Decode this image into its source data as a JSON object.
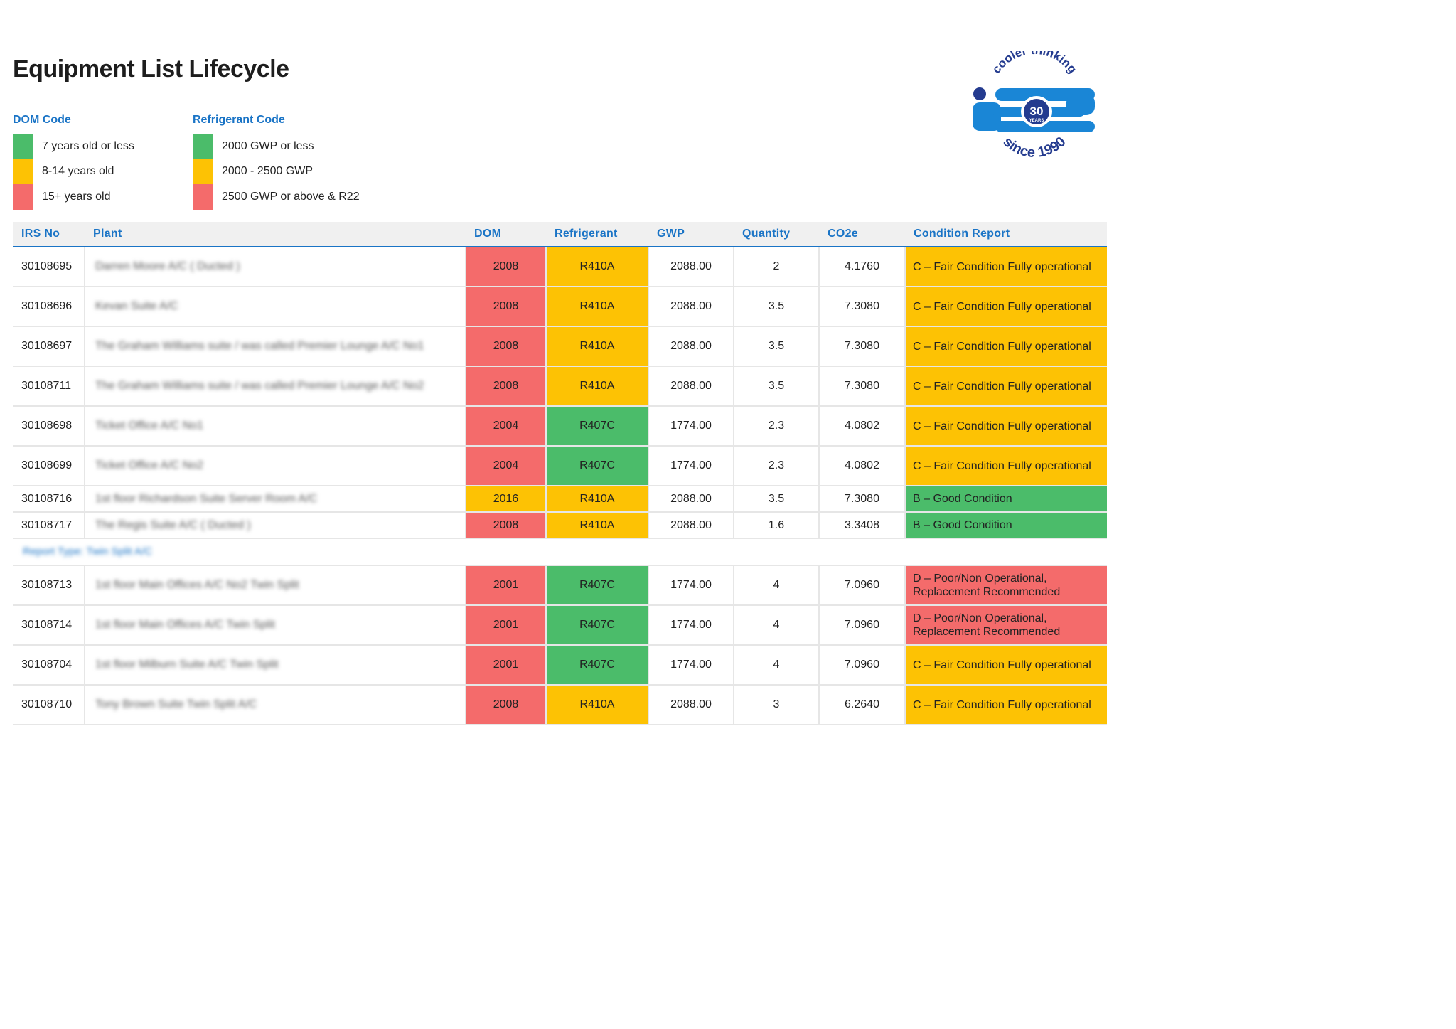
{
  "title": "Equipment List Lifecycle",
  "legend": {
    "dom": {
      "heading": "DOM Code",
      "items": [
        {
          "label": "7 years old or less",
          "color": "#4bbc6a"
        },
        {
          "label": "8-14 years old",
          "color": "#fdc204"
        },
        {
          "label": "15+ years old",
          "color": "#f46b6b"
        }
      ]
    },
    "refrigerant": {
      "heading": "Refrigerant Code",
      "items": [
        {
          "label": "2000 GWP or less",
          "color": "#4bbc6a"
        },
        {
          "label": "2000 - 2500 GWP",
          "color": "#fdc204"
        },
        {
          "label": "2500 GWP or above & R22",
          "color": "#f46b6b"
        }
      ]
    }
  },
  "logo": {
    "top_text": "cooler thinking",
    "badge_number": "30",
    "badge_word": "YEARS",
    "bottom_text": "since 1990"
  },
  "table": {
    "headers": [
      "IRS No",
      "Plant",
      "DOM",
      "Refrigerant",
      "GWP",
      "Quantity",
      "CO2e",
      "Condition Report"
    ],
    "rows": [
      {
        "irs": "30108695",
        "plant": "Darren Moore A/C ( Ducted )",
        "dom": "2008",
        "refrigerant": "R410A",
        "gwp": "2088.00",
        "quantity": "2",
        "co2e": "4.1760",
        "condition": "C – Fair Condition Fully operational"
      },
      {
        "irs": "30108696",
        "plant": "Kevan Suite A/C",
        "dom": "2008",
        "refrigerant": "R410A",
        "gwp": "2088.00",
        "quantity": "3.5",
        "co2e": "7.3080",
        "condition": "C – Fair Condition Fully operational"
      },
      {
        "irs": "30108697",
        "plant": "The Graham Williams suite / was called Premier Lounge A/C No1",
        "dom": "2008",
        "refrigerant": "R410A",
        "gwp": "2088.00",
        "quantity": "3.5",
        "co2e": "7.3080",
        "condition": "C – Fair Condition Fully operational"
      },
      {
        "irs": "30108711",
        "plant": "The Graham Williams suite / was called Premier Lounge A/C No2",
        "dom": "2008",
        "refrigerant": "R410A",
        "gwp": "2088.00",
        "quantity": "3.5",
        "co2e": "7.3080",
        "condition": "C – Fair Condition Fully operational"
      },
      {
        "irs": "30108698",
        "plant": "Ticket Office A/C No1",
        "dom": "2004",
        "refrigerant": "R407C",
        "gwp": "1774.00",
        "quantity": "2.3",
        "co2e": "4.0802",
        "condition": "C – Fair Condition Fully operational"
      },
      {
        "irs": "30108699",
        "plant": "Ticket Office A/C No2",
        "dom": "2004",
        "refrigerant": "R407C",
        "gwp": "1774.00",
        "quantity": "2.3",
        "co2e": "4.0802",
        "condition": "C – Fair Condition Fully operational"
      },
      {
        "irs": "30108716",
        "plant": "1st floor Richardson Suite Server Room A/C",
        "dom": "2016",
        "refrigerant": "R410A",
        "gwp": "2088.00",
        "quantity": "3.5",
        "co2e": "7.3080",
        "condition": "B – Good Condition"
      },
      {
        "irs": "30108717",
        "plant": "The Regis Suite A/C ( Ducted )",
        "dom": "2008",
        "refrigerant": "R410A",
        "gwp": "2088.00",
        "quantity": "1.6",
        "co2e": "3.3408",
        "condition": "B – Good Condition"
      }
    ],
    "group_label": "Report Type: Twin Split A/C",
    "rows2": [
      {
        "irs": "30108713",
        "plant": "1st floor Main Offices A/C No2 Twin Split",
        "dom": "2001",
        "refrigerant": "R407C",
        "gwp": "1774.00",
        "quantity": "4",
        "co2e": "7.0960",
        "condition": "D – Poor/Non Operational, Replacement Recommended"
      },
      {
        "irs": "30108714",
        "plant": "1st floor Main Offices A/C Twin Split",
        "dom": "2001",
        "refrigerant": "R407C",
        "gwp": "1774.00",
        "quantity": "4",
        "co2e": "7.0960",
        "condition": "D – Poor/Non Operational, Replacement Recommended"
      },
      {
        "irs": "30108704",
        "plant": "1st floor Milburn Suite A/C Twin Split",
        "dom": "2001",
        "refrigerant": "R407C",
        "gwp": "1774.00",
        "quantity": "4",
        "co2e": "7.0960",
        "condition": "C – Fair Condition Fully operational"
      },
      {
        "irs": "30108710",
        "plant": "Tony Brown Suite Twin Split A/C",
        "dom": "2008",
        "refrigerant": "R410A",
        "gwp": "2088.00",
        "quantity": "3",
        "co2e": "6.2640",
        "condition": "C – Fair Condition Fully operational"
      }
    ]
  }
}
